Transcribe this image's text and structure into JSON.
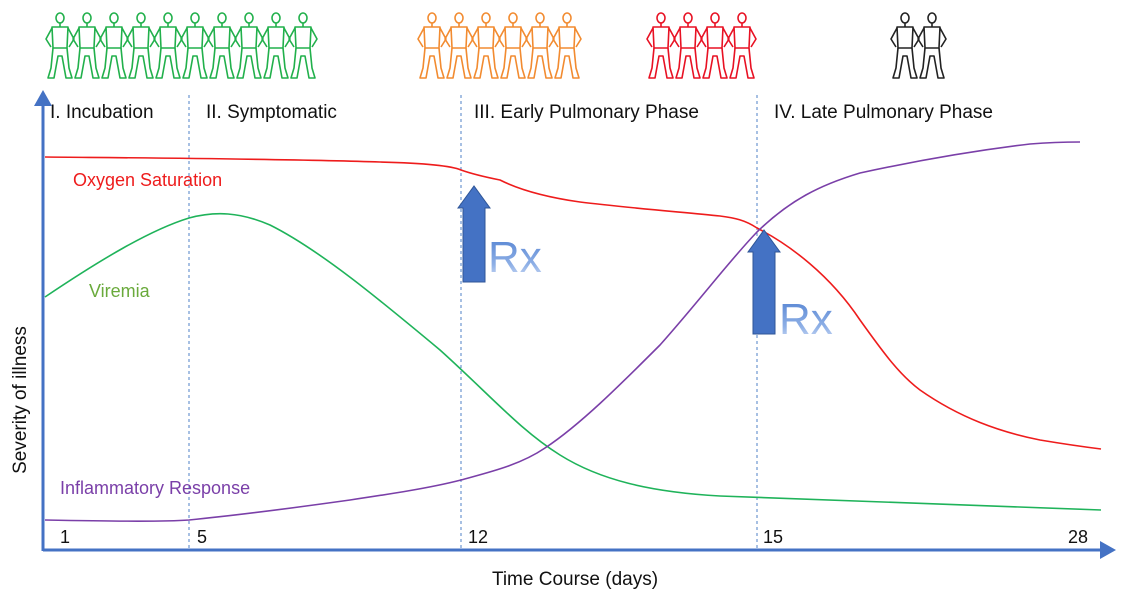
{
  "chart_data": {
    "type": "line",
    "xlabel": "Time Course (days)",
    "ylabel": "Severity of illness",
    "x_ticks": [
      "1",
      "5",
      "12",
      "15",
      "28"
    ],
    "phases": [
      {
        "label": "I. Incubation"
      },
      {
        "label": "II. Symptomatic"
      },
      {
        "label": "III. Early Pulmonary Phase"
      },
      {
        "label": "IV. Late Pulmonary Phase"
      }
    ],
    "figure_groups": [
      {
        "count": 10,
        "color": "#21b04b"
      },
      {
        "count": 6,
        "color": "#f28b30"
      },
      {
        "count": 4,
        "color": "#e81123"
      },
      {
        "count": 2,
        "color": "#222222"
      }
    ],
    "series": [
      {
        "name": "Oxygen Saturation",
        "color": "#ee1c1c"
      },
      {
        "name": "Viremia",
        "color": "#1fb35a",
        "label_color": "#6aaa3c"
      },
      {
        "name": "Inflammatory Response",
        "color": "#7a3fa8"
      }
    ],
    "treatments": [
      {
        "label": "Rx",
        "color": "#4472c4"
      },
      {
        "label": "Rx",
        "color": "#4472c4"
      }
    ],
    "axis_color": "#4472c4"
  }
}
